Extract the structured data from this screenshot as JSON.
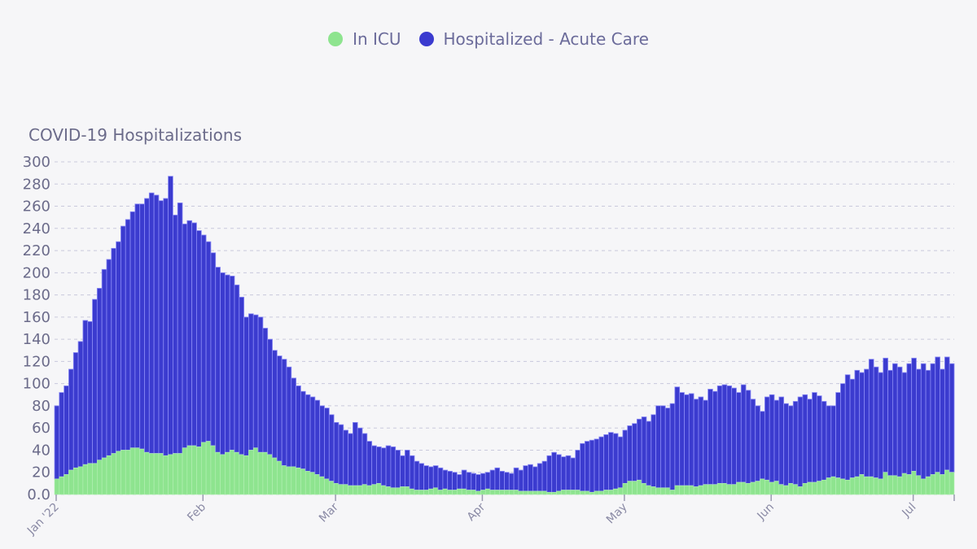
{
  "chart_data": {
    "type": "bar",
    "stacked": true,
    "title": "COVID-19 Hospitalizations",
    "xlabel": "",
    "ylabel": "",
    "ylim": [
      0,
      300
    ],
    "yticks": [
      "0.0",
      "20",
      "40",
      "60",
      "80",
      "100",
      "120",
      "140",
      "160",
      "180",
      "200",
      "220",
      "240",
      "260",
      "280",
      "300"
    ],
    "xticks": [
      {
        "label": "Jan '22",
        "day": 0
      },
      {
        "label": "Feb",
        "day": 31
      },
      {
        "label": "Mar",
        "day": 59
      },
      {
        "label": "Apr",
        "day": 90
      },
      {
        "label": "May",
        "day": 120
      },
      {
        "label": "Jun",
        "day": 151
      },
      {
        "label": "Jul",
        "day": 181
      }
    ],
    "x_start": "2022-01-01",
    "grid": true,
    "legend_position": "top-center",
    "series": [
      {
        "name": "In ICU",
        "color": "#8ee48f",
        "values": [
          14,
          16,
          18,
          22,
          24,
          25,
          27,
          28,
          28,
          31,
          33,
          35,
          37,
          39,
          40,
          40,
          42,
          42,
          41,
          38,
          37,
          37,
          37,
          35,
          36,
          37,
          37,
          42,
          44,
          44,
          43,
          47,
          48,
          44,
          38,
          36,
          38,
          40,
          38,
          36,
          35,
          40,
          42,
          38,
          38,
          36,
          33,
          30,
          26,
          25,
          25,
          24,
          23,
          21,
          20,
          18,
          16,
          14,
          12,
          10,
          9,
          9,
          8,
          8,
          8,
          9,
          8,
          9,
          10,
          8,
          7,
          6,
          6,
          7,
          7,
          5,
          4,
          4,
          4,
          5,
          6,
          4,
          5,
          4,
          4,
          5,
          5,
          4,
          4,
          3,
          4,
          5,
          4,
          4,
          4,
          4,
          4,
          4,
          3,
          3,
          3,
          3,
          3,
          3,
          2,
          2,
          3,
          4,
          4,
          4,
          4,
          3,
          3,
          2,
          3,
          3,
          4,
          4,
          5,
          6,
          10,
          12,
          12,
          13,
          10,
          8,
          7,
          6,
          6,
          6,
          4,
          8,
          8,
          8,
          8,
          7,
          8,
          9,
          9,
          9,
          10,
          10,
          9,
          9,
          11,
          11,
          10,
          11,
          12,
          14,
          13,
          11,
          12,
          9,
          8,
          10,
          9,
          7,
          10,
          11,
          11,
          12,
          13,
          15,
          16,
          15,
          14,
          13,
          15,
          16,
          18,
          16,
          16,
          15,
          14,
          20,
          17,
          17,
          16,
          19,
          18,
          21,
          17,
          14,
          16,
          18,
          20,
          18,
          22,
          20
        ]
      },
      {
        "name": "Hospitalized - Acute Care",
        "color": "#3b3bcf",
        "totals": [
          80,
          92,
          98,
          113,
          128,
          138,
          157,
          156,
          176,
          186,
          203,
          212,
          222,
          228,
          242,
          248,
          255,
          262,
          262,
          267,
          272,
          270,
          265,
          267,
          287,
          252,
          263,
          244,
          247,
          245,
          238,
          234,
          228,
          218,
          205,
          200,
          198,
          197,
          189,
          178,
          160,
          163,
          162,
          160,
          150,
          140,
          130,
          125,
          122,
          115,
          105,
          98,
          93,
          90,
          88,
          85,
          80,
          78,
          72,
          65,
          63,
          58,
          55,
          65,
          60,
          55,
          48,
          44,
          43,
          42,
          44,
          43,
          40,
          35,
          40,
          35,
          30,
          28,
          26,
          25,
          26,
          24,
          22,
          21,
          20,
          18,
          22,
          20,
          19,
          18,
          19,
          20,
          22,
          24,
          21,
          20,
          19,
          24,
          22,
          26,
          27,
          25,
          28,
          30,
          35,
          38,
          36,
          34,
          35,
          33,
          40,
          46,
          48,
          49,
          50,
          52,
          54,
          56,
          55,
          52,
          58,
          62,
          64,
          68,
          70,
          66,
          72,
          80,
          80,
          78,
          82,
          97,
          92,
          90,
          91,
          86,
          88,
          85,
          95,
          93,
          98,
          99,
          98,
          96,
          92,
          99,
          94,
          86,
          80,
          75,
          88,
          90,
          85,
          88,
          82,
          80,
          84,
          88,
          90,
          86,
          92,
          89,
          84,
          80,
          80,
          92,
          100,
          108,
          104,
          112,
          110,
          113,
          122,
          115,
          110,
          123,
          112,
          118,
          115,
          110,
          118,
          123,
          113,
          118,
          112,
          118,
          124,
          113,
          124,
          118
        ]
      }
    ]
  }
}
